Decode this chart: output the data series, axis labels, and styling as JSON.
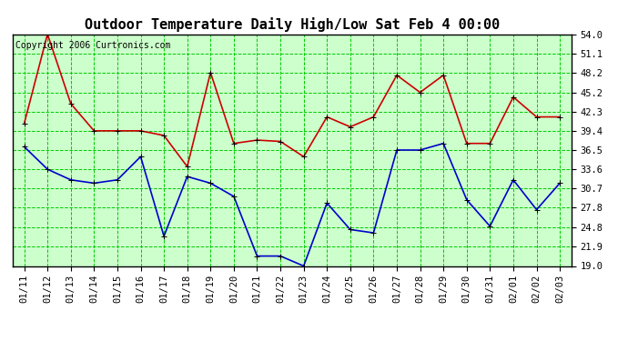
{
  "title": "Outdoor Temperature Daily High/Low Sat Feb 4 00:00",
  "copyright": "Copyright 2006 Curtronics.com",
  "dates": [
    "01/11",
    "01/12",
    "01/13",
    "01/14",
    "01/15",
    "01/16",
    "01/17",
    "01/18",
    "01/19",
    "01/20",
    "01/21",
    "01/22",
    "01/23",
    "01/24",
    "01/25",
    "01/26",
    "01/27",
    "01/28",
    "01/29",
    "01/30",
    "01/31",
    "02/01",
    "02/02",
    "02/03"
  ],
  "high": [
    40.5,
    54.0,
    43.5,
    39.4,
    39.4,
    39.4,
    38.7,
    34.0,
    48.2,
    37.5,
    38.0,
    37.8,
    35.5,
    41.5,
    40.0,
    41.5,
    47.8,
    45.2,
    47.8,
    37.5,
    37.5,
    44.5,
    41.5,
    41.5
  ],
  "low": [
    37.0,
    33.6,
    32.0,
    31.5,
    32.0,
    35.5,
    23.5,
    32.5,
    31.5,
    29.5,
    20.5,
    20.5,
    19.0,
    28.5,
    24.5,
    24.0,
    36.5,
    36.5,
    37.5,
    29.0,
    25.0,
    32.0,
    27.5,
    31.5
  ],
  "high_color": "#cc0000",
  "low_color": "#0000cc",
  "bg_color": "#ccffcc",
  "grid_color": "#00cc00",
  "ylim": [
    19.0,
    54.0
  ],
  "yticks": [
    19.0,
    21.9,
    24.8,
    27.8,
    30.7,
    33.6,
    36.5,
    39.4,
    42.3,
    45.2,
    48.2,
    51.1,
    54.0
  ],
  "title_fontsize": 11,
  "tick_fontsize": 7.5,
  "copyright_fontsize": 7,
  "marker": "+",
  "markersize": 5,
  "linewidth": 1.2,
  "fig_width": 6.9,
  "fig_height": 3.75,
  "dpi": 100
}
